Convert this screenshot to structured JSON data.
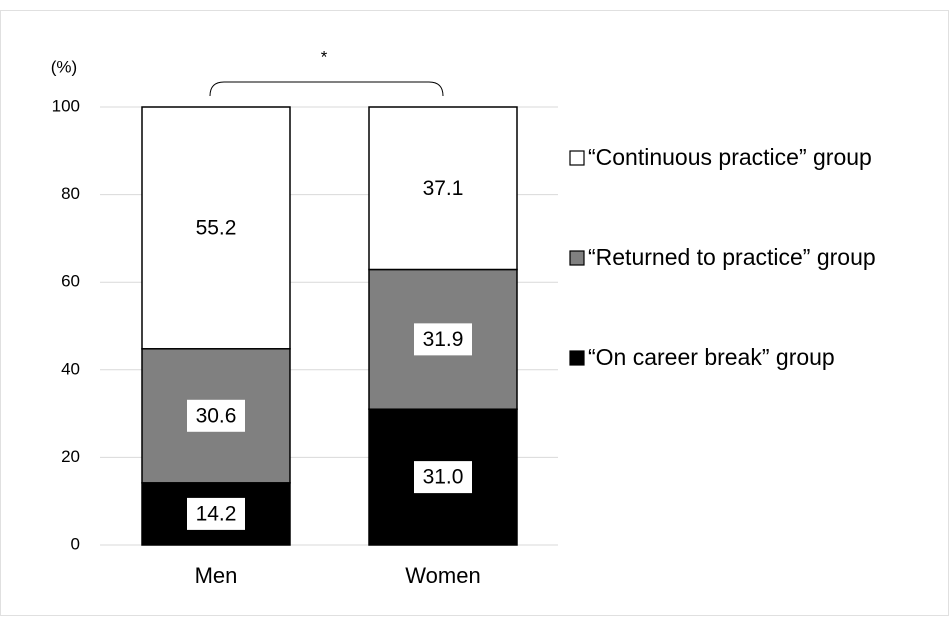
{
  "chart_data": {
    "type": "stacked_bar",
    "y_unit_label": "(%)",
    "annotation": "*",
    "categories": [
      "Men",
      "Women"
    ],
    "series": [
      {
        "name": "“On career break” group",
        "color": "#000000",
        "values": [
          14.2,
          31.0
        ],
        "value_labels": [
          "14.2",
          "31.0"
        ]
      },
      {
        "name": "“Returned to practice” group",
        "color": "#808080",
        "values": [
          30.6,
          31.9
        ],
        "value_labels": [
          "30.6",
          "31.9"
        ]
      },
      {
        "name": "“Continuous practice” group",
        "color": "#ffffff",
        "values": [
          55.2,
          37.1
        ],
        "value_labels": [
          "55.2",
          "37.1"
        ]
      }
    ],
    "ylim": [
      0,
      100
    ],
    "yticks": [
      0,
      20,
      40,
      60,
      80,
      100
    ],
    "grid": true,
    "legend": "right"
  }
}
